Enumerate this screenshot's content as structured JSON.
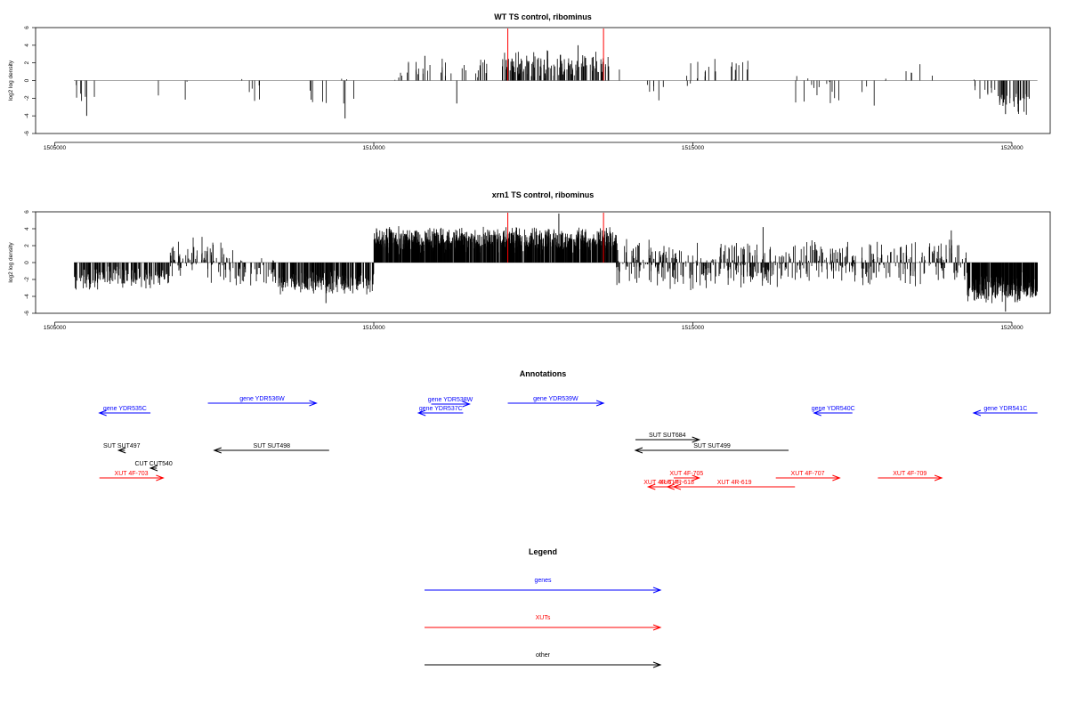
{
  "chart_data": [
    {
      "type": "bar",
      "title": "WT TS control, ribominus",
      "xlabel": "",
      "ylabel": "log2 log density",
      "xlim": [
        1504700,
        1520600
      ],
      "ylim": [
        -6,
        6
      ],
      "x_ticks": [
        1505000,
        1510000,
        1515000,
        1520000
      ],
      "y_ticks": [
        6,
        4,
        2,
        0,
        -2,
        -4,
        -6
      ],
      "marker_lines": [
        1512100,
        1513600
      ],
      "data_extent": [
        1505300,
        1520400
      ],
      "segments": [
        {
          "x0": 1505300,
          "x1": 1505800,
          "density": 0.5,
          "mean": -1.6,
          "spread": 1.2,
          "seed": 11
        },
        {
          "x0": 1506600,
          "x1": 1506700,
          "density": 0.2,
          "mean": -1.4,
          "spread": 0.3,
          "seed": 12
        },
        {
          "x0": 1507000,
          "x1": 1507300,
          "density": 0.3,
          "mean": -0.6,
          "spread": 1.6,
          "seed": 13
        },
        {
          "x0": 1507900,
          "x1": 1508700,
          "density": 0.3,
          "mean": -0.8,
          "spread": 1.6,
          "seed": 14
        },
        {
          "x0": 1508800,
          "x1": 1509700,
          "density": 0.4,
          "mean": -1.6,
          "spread": 1.3,
          "seed": 15
        },
        {
          "x0": 1510300,
          "x1": 1511800,
          "density": 1.0,
          "mean": 1.3,
          "spread": 1.0,
          "seed": 16
        },
        {
          "x0": 1512000,
          "x1": 1513700,
          "density": 3.5,
          "mean": 1.7,
          "spread": 1.1,
          "seed": 17
        },
        {
          "x0": 1513800,
          "x1": 1514000,
          "density": 0.3,
          "mean": 1.2,
          "spread": 0.6,
          "seed": 18
        },
        {
          "x0": 1514200,
          "x1": 1514700,
          "density": 0.5,
          "mean": -1.0,
          "spread": 1.0,
          "seed": 19
        },
        {
          "x0": 1514800,
          "x1": 1515900,
          "density": 0.8,
          "mean": 1.0,
          "spread": 1.2,
          "seed": 20
        },
        {
          "x0": 1516500,
          "x1": 1517500,
          "density": 0.6,
          "mean": -1.0,
          "spread": 1.4,
          "seed": 21
        },
        {
          "x0": 1517600,
          "x1": 1518100,
          "density": 0.4,
          "mean": -1.0,
          "spread": 1.3,
          "seed": 22
        },
        {
          "x0": 1518300,
          "x1": 1518800,
          "density": 0.4,
          "mean": 1.0,
          "spread": 1.0,
          "seed": 23
        },
        {
          "x0": 1519400,
          "x1": 1519800,
          "density": 1.2,
          "mean": -1.5,
          "spread": 1.2,
          "seed": 24
        },
        {
          "x0": 1519800,
          "x1": 1520300,
          "density": 3.0,
          "mean": -2.5,
          "spread": 1.0,
          "seed": 25
        }
      ],
      "peaks": [
        {
          "x": 1505500,
          "y": -4.0
        },
        {
          "x": 1509550,
          "y": -4.3
        },
        {
          "x": 1510800,
          "y": 2.8
        },
        {
          "x": 1511300,
          "y": -2.6
        },
        {
          "x": 1513200,
          "y": 4.0
        },
        {
          "x": 1519900,
          "y": -3.8
        }
      ]
    },
    {
      "type": "bar",
      "title": "xrn1 TS control, ribominus",
      "xlabel": "",
      "ylabel": "log2 log density",
      "xlim": [
        1504700,
        1520600
      ],
      "ylim": [
        -6,
        6
      ],
      "x_ticks": [
        1505000,
        1510000,
        1515000,
        1520000
      ],
      "y_ticks": [
        6,
        4,
        2,
        0,
        -2,
        -4,
        -6
      ],
      "marker_lines": [
        1512100,
        1513600
      ],
      "data_extent": [
        1505300,
        1520400
      ],
      "segments": [
        {
          "x0": 1505300,
          "x1": 1506800,
          "density": 5.0,
          "mean": -1.8,
          "spread": 1.0,
          "seed": 31
        },
        {
          "x0": 1506800,
          "x1": 1507800,
          "density": 4.0,
          "mean": 0.2,
          "spread": 1.9,
          "seed": 32
        },
        {
          "x0": 1507800,
          "x1": 1508500,
          "density": 3.0,
          "mean": -1.0,
          "spread": 1.3,
          "seed": 33
        },
        {
          "x0": 1508500,
          "x1": 1510000,
          "density": 7.0,
          "mean": -2.3,
          "spread": 1.0,
          "seed": 34
        },
        {
          "x0": 1510000,
          "x1": 1513800,
          "density": 12.0,
          "mean": 2.6,
          "spread": 1.1,
          "seed": 35
        },
        {
          "x0": 1513800,
          "x1": 1516500,
          "density": 5.0,
          "mean": -0.3,
          "spread": 2.0,
          "seed": 36
        },
        {
          "x0": 1516500,
          "x1": 1519300,
          "density": 4.0,
          "mean": 0.0,
          "spread": 1.9,
          "seed": 37
        },
        {
          "x0": 1519300,
          "x1": 1520400,
          "density": 12.0,
          "mean": -3.0,
          "spread": 1.2,
          "seed": 38
        }
      ],
      "peaks": [
        {
          "x": 1509250,
          "y": -4.8
        },
        {
          "x": 1512900,
          "y": 5.8
        },
        {
          "x": 1516100,
          "y": 4.2
        },
        {
          "x": 1519050,
          "y": 3.8
        },
        {
          "x": 1519900,
          "y": -5.8
        }
      ]
    }
  ],
  "annotations": {
    "title": "Annotations",
    "xlim": [
      1504700,
      1520600
    ],
    "features": [
      {
        "label": "gene YDR535C",
        "kind": "gene",
        "x0": 1505700,
        "x1": 1506500,
        "dir": "left",
        "row": 2
      },
      {
        "label": "gene YDR536W",
        "kind": "gene",
        "x0": 1507400,
        "x1": 1509100,
        "dir": "right",
        "row": 0
      },
      {
        "label": "gene YDR538W",
        "kind": "gene",
        "x0": 1510900,
        "x1": 1511500,
        "dir": "right",
        "row": 1
      },
      {
        "label": "gene YDR537C",
        "kind": "gene",
        "x0": 1510700,
        "x1": 1511400,
        "dir": "left",
        "row": 2
      },
      {
        "label": "gene YDR539W",
        "kind": "gene",
        "x0": 1512100,
        "x1": 1513600,
        "dir": "right",
        "row": 0
      },
      {
        "label": "gene YDR540C",
        "kind": "gene",
        "x0": 1516900,
        "x1": 1517500,
        "dir": "left",
        "row": 2
      },
      {
        "label": "gene YDR541C",
        "kind": "gene",
        "x0": 1519400,
        "x1": 1520400,
        "dir": "left",
        "row": 2
      },
      {
        "label": "SUT SUT497",
        "kind": "other",
        "x0": 1506000,
        "x1": 1506100,
        "dir": "left",
        "row": 3
      },
      {
        "label": "SUT SUT498",
        "kind": "other",
        "x0": 1507500,
        "x1": 1509300,
        "dir": "left",
        "row": 3
      },
      {
        "label": "SUT SUT684",
        "kind": "other",
        "x0": 1514100,
        "x1": 1515100,
        "dir": "right",
        "row": 4
      },
      {
        "label": "SUT SUT499",
        "kind": "other",
        "x0": 1514100,
        "x1": 1516500,
        "dir": "left",
        "row": 5
      },
      {
        "label": "CUT CUT540",
        "kind": "other",
        "x0": 1506500,
        "x1": 1506600,
        "dir": "left",
        "row": 6
      },
      {
        "label": "XUT 4F-703",
        "kind": "xut",
        "x0": 1505700,
        "x1": 1506700,
        "dir": "right",
        "row": 7
      },
      {
        "label": "XUT 4F-705",
        "kind": "xut",
        "x0": 1514700,
        "x1": 1515100,
        "dir": "right",
        "row": 7
      },
      {
        "label": "XUT 4F-707",
        "kind": "xut",
        "x0": 1516300,
        "x1": 1517300,
        "dir": "right",
        "row": 7
      },
      {
        "label": "XUT 4F-709",
        "kind": "xut",
        "x0": 1517900,
        "x1": 1518900,
        "dir": "right",
        "row": 7
      },
      {
        "label": "XUT 4R-617",
        "kind": "xut",
        "x0": 1514300,
        "x1": 1514700,
        "dir": "left",
        "row": 8
      },
      {
        "label": "XUT 4R-618",
        "kind": "xut",
        "x0": 1514600,
        "x1": 1514900,
        "dir": "left",
        "row": 8
      },
      {
        "label": "XUT 4R-619",
        "kind": "xut",
        "x0": 1514700,
        "x1": 1516600,
        "dir": "left",
        "row": 8
      }
    ]
  },
  "legend": {
    "title": "Legend",
    "items": [
      {
        "label": "genes",
        "color": "#0000ff"
      },
      {
        "label": "XUTs",
        "color": "#ff0000"
      },
      {
        "label": "other",
        "color": "#000000"
      }
    ]
  },
  "colors": {
    "gene": "#0000ff",
    "xut": "#ff0000",
    "other": "#000000",
    "marker": "#ff0000",
    "axis": "#000000",
    "zero_line": "#888888"
  }
}
